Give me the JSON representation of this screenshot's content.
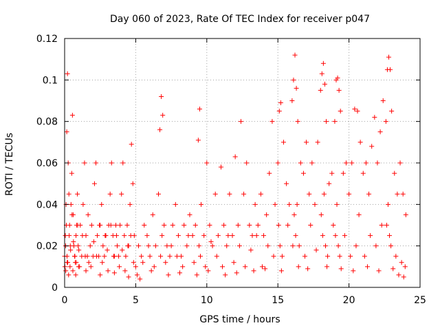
{
  "chart_data": {
    "type": "scatter",
    "title": "Day 060 of 2023, Rate Of TEC Index for receiver p047",
    "xlabel": "GPS time / hours",
    "ylabel": "ROTI / TECUs",
    "xlim": [
      0,
      25
    ],
    "ylim": [
      0,
      0.12
    ],
    "x_ticks": [
      0,
      5,
      10,
      15,
      20,
      25
    ],
    "x_tick_labels": [
      "0",
      "5",
      "10",
      "15",
      "20",
      "25"
    ],
    "y_ticks": [
      0,
      0.02,
      0.04,
      0.06,
      0.08,
      0.1,
      0.12
    ],
    "y_tick_labels": [
      "0",
      "0.02",
      "0.04",
      "0.06",
      "0.08",
      "0.1",
      "0.12"
    ],
    "grid": true,
    "marker": "plus",
    "marker_color": "#ff0000",
    "series": [
      {
        "name": "ROTI",
        "x": [
          0.0,
          0.05,
          0.1,
          0.15,
          0.2,
          0.25,
          0.3,
          0.35,
          0.4,
          0.45,
          0.5,
          0.55,
          0.6,
          0.65,
          0.7,
          0.75,
          0.8,
          0.85,
          0.9,
          0.95,
          1.0,
          1.1,
          1.2,
          1.3,
          1.4,
          1.5,
          1.6,
          1.7,
          1.8,
          1.9,
          2.0,
          2.1,
          2.2,
          2.3,
          2.4,
          2.5,
          2.6,
          2.7,
          2.8,
          2.9,
          3.0,
          3.1,
          3.2,
          3.3,
          3.4,
          3.5,
          3.6,
          3.7,
          3.8,
          3.9,
          4.0,
          4.1,
          4.2,
          4.3,
          4.4,
          4.5,
          4.6,
          4.7,
          4.8,
          4.9,
          5.0,
          5.2,
          5.4,
          5.6,
          5.8,
          6.0,
          6.2,
          6.4,
          6.6,
          6.7,
          6.8,
          6.9,
          7.0,
          7.2,
          7.4,
          7.6,
          7.8,
          8.0,
          8.2,
          8.4,
          8.6,
          8.8,
          9.0,
          9.2,
          9.4,
          9.5,
          9.6,
          9.8,
          10.0,
          10.2,
          10.4,
          10.6,
          10.8,
          11.0,
          11.2,
          11.4,
          11.6,
          11.8,
          12.0,
          12.2,
          12.4,
          12.6,
          12.8,
          13.0,
          13.2,
          13.4,
          13.6,
          13.8,
          14.0,
          14.2,
          14.4,
          14.6,
          14.8,
          15.0,
          15.1,
          15.2,
          15.4,
          15.6,
          15.8,
          16.0,
          16.1,
          16.2,
          16.3,
          16.4,
          16.6,
          16.8,
          17.0,
          17.2,
          17.4,
          17.6,
          17.8,
          18.0,
          18.1,
          18.2,
          18.3,
          18.4,
          18.6,
          18.8,
          19.0,
          19.1,
          19.2,
          19.3,
          19.4,
          19.6,
          19.8,
          20.0,
          20.2,
          20.4,
          20.6,
          20.8,
          21.0,
          21.2,
          21.4,
          21.6,
          21.8,
          22.0,
          22.2,
          22.4,
          22.6,
          22.7,
          22.8,
          22.9,
          23.0,
          23.2,
          23.4,
          23.6,
          23.8,
          24.0,
          0.02,
          0.07,
          0.12,
          0.17,
          0.22,
          0.32,
          0.42,
          0.52,
          0.62,
          0.72,
          0.82,
          0.92,
          1.05,
          1.25,
          1.45,
          1.65,
          1.85,
          2.05,
          2.25,
          2.45,
          2.65,
          2.85,
          3.05,
          3.25,
          3.45,
          3.65,
          3.85,
          4.05,
          4.25,
          4.45,
          4.65,
          4.85,
          5.1,
          5.5,
          5.9,
          6.3,
          6.75,
          6.85,
          7.1,
          7.5,
          7.9,
          8.3,
          8.7,
          9.1,
          9.45,
          9.55,
          9.9,
          10.3,
          10.7,
          11.1,
          11.5,
          11.9,
          12.3,
          12.7,
          13.1,
          13.5,
          13.9,
          14.3,
          14.7,
          15.05,
          15.15,
          15.3,
          15.7,
          16.05,
          16.15,
          16.25,
          16.35,
          16.5,
          16.9,
          17.3,
          17.7,
          18.05,
          18.15,
          18.25,
          18.35,
          18.5,
          18.9,
          19.05,
          19.15,
          19.25,
          19.35,
          19.7,
          20.1,
          20.5,
          20.7,
          21.1,
          21.5,
          21.9,
          22.3,
          22.65,
          22.75,
          22.85,
          22.95,
          23.3,
          23.7,
          23.95,
          0.08,
          0.18,
          0.28,
          0.38,
          0.58,
          0.78,
          0.98,
          1.5,
          2.5,
          3.5,
          4.5,
          5.3,
          6.1,
          7.3,
          8.1,
          9.3,
          10.1,
          11.3,
          12.1,
          13.3,
          14.1,
          15.25,
          16.45,
          17.1,
          18.45,
          19.45,
          20.3,
          21.3,
          22.1,
          23.1,
          23.5,
          23.85
        ],
        "y": [
          0.015,
          0.025,
          0.04,
          0.075,
          0.103,
          0.06,
          0.045,
          0.03,
          0.02,
          0.04,
          0.055,
          0.083,
          0.035,
          0.02,
          0.015,
          0.012,
          0.025,
          0.03,
          0.045,
          0.02,
          0.018,
          0.03,
          0.015,
          0.04,
          0.06,
          0.025,
          0.015,
          0.012,
          0.02,
          0.03,
          0.015,
          0.05,
          0.06,
          0.025,
          0.015,
          0.03,
          0.04,
          0.02,
          0.015,
          0.025,
          0.018,
          0.03,
          0.045,
          0.06,
          0.025,
          0.015,
          0.03,
          0.02,
          0.015,
          0.03,
          0.045,
          0.06,
          0.025,
          0.015,
          0.03,
          0.02,
          0.04,
          0.069,
          0.05,
          0.025,
          0.01,
          0.02,
          0.015,
          0.03,
          0.025,
          0.015,
          0.035,
          0.02,
          0.045,
          0.076,
          0.092,
          0.083,
          0.03,
          0.02,
          0.015,
          0.03,
          0.04,
          0.025,
          0.015,
          0.03,
          0.02,
          0.035,
          0.025,
          0.03,
          0.071,
          0.086,
          0.04,
          0.025,
          0.06,
          0.03,
          0.02,
          0.045,
          0.025,
          0.058,
          0.03,
          0.02,
          0.045,
          0.025,
          0.063,
          0.03,
          0.08,
          0.045,
          0.06,
          0.03,
          0.025,
          0.04,
          0.03,
          0.045,
          0.025,
          0.035,
          0.055,
          0.08,
          0.04,
          0.06,
          0.085,
          0.089,
          0.07,
          0.05,
          0.04,
          0.09,
          0.1,
          0.112,
          0.096,
          0.08,
          0.06,
          0.055,
          0.07,
          0.045,
          0.06,
          0.04,
          0.07,
          0.095,
          0.103,
          0.108,
          0.098,
          0.08,
          0.05,
          0.055,
          0.08,
          0.1,
          0.101,
          0.095,
          0.085,
          0.055,
          0.06,
          0.045,
          0.06,
          0.086,
          0.085,
          0.07,
          0.055,
          0.06,
          0.045,
          0.068,
          0.082,
          0.06,
          0.075,
          0.09,
          0.08,
          0.105,
          0.111,
          0.105,
          0.085,
          0.055,
          0.045,
          0.06,
          0.045,
          0.035,
          0.01,
          0.02,
          0.03,
          0.015,
          0.012,
          0.025,
          0.018,
          0.035,
          0.022,
          0.015,
          0.012,
          0.03,
          0.01,
          0.025,
          0.015,
          0.035,
          0.01,
          0.022,
          0.015,
          0.03,
          0.012,
          0.025,
          0.008,
          0.03,
          0.015,
          0.025,
          0.01,
          0.018,
          0.008,
          0.02,
          0.025,
          0.012,
          0.006,
          0.012,
          0.02,
          0.01,
          0.015,
          0.025,
          0.012,
          0.02,
          0.015,
          0.01,
          0.025,
          0.012,
          0.02,
          0.015,
          0.01,
          0.022,
          0.015,
          0.01,
          0.025,
          0.012,
          0.02,
          0.01,
          0.018,
          0.025,
          0.01,
          0.02,
          0.015,
          0.03,
          0.02,
          0.015,
          0.03,
          0.02,
          0.035,
          0.025,
          0.04,
          0.02,
          0.015,
          0.03,
          0.018,
          0.035,
          0.025,
          0.045,
          0.02,
          0.015,
          0.03,
          0.025,
          0.04,
          0.02,
          0.015,
          0.025,
          0.015,
          0.02,
          0.035,
          0.015,
          0.025,
          0.02,
          0.03,
          0.03,
          0.04,
          0.025,
          0.02,
          0.015,
          0.012,
          0.01,
          0.008,
          0.012,
          0.006,
          0.01,
          0.008,
          0.006,
          0.01,
          0.008,
          0.006,
          0.007,
          0.005,
          0.004,
          0.008,
          0.006,
          0.007,
          0.006,
          0.008,
          0.006,
          0.007,
          0.008,
          0.009,
          0.008,
          0.01,
          0.009,
          0.01,
          0.009,
          0.008,
          0.01,
          0.008,
          0.009,
          0.006,
          0.005
        ]
      }
    ]
  }
}
